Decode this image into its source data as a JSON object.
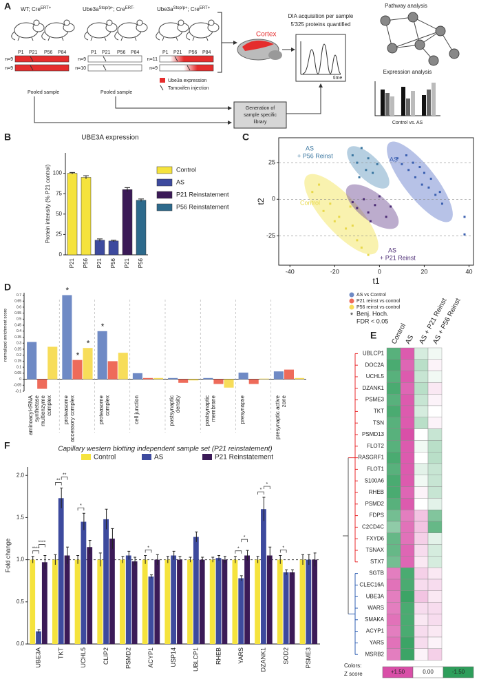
{
  "panel_labels": [
    "A",
    "B",
    "C",
    "D",
    "E",
    "F"
  ],
  "diagram": {
    "groups": [
      {
        "label": [
          [
            "WT; Cre",
            "ERT+"
          ]
        ],
        "n": [
          "n=9",
          "n=9"
        ],
        "pooled": "Pooled sample"
      },
      {
        "label": [
          [
            "Ube3a",
            "Stop/p+"
          ],
          [
            "; Cre",
            "ERT-"
          ]
        ],
        "n": [
          "n=9",
          "n=10"
        ],
        "pooled": "Pooled sample"
      },
      {
        "label": [
          [
            "Ube3a",
            "Stop/p+"
          ],
          [
            "; Cre",
            "ERT+"
          ]
        ],
        "n": [
          "n=11",
          "n=9"
        ]
      }
    ],
    "timepoints": [
      "P1",
      "P21",
      "P56",
      "P84"
    ],
    "legend": [
      "Ube3a expression",
      "Tamoxifen injection"
    ],
    "cortex": "Cortex",
    "acquisition": [
      "DIA acquisition per sample",
      "5'325 proteins quantified"
    ],
    "time_axis": "time",
    "pathway": "Pathway analysis",
    "expression": "Expression analysis",
    "comparison": "Control vs. AS",
    "library": [
      "Generation of",
      "sample specific",
      "library"
    ]
  },
  "chart_data": [
    {
      "type": "bar",
      "title": "UBE3A expression",
      "y_label": "Protein intensity (% P21 control)",
      "categories": [
        "P21",
        "P56",
        "P21",
        "P56",
        "P21",
        "P56"
      ],
      "series": [
        {
          "name": "Control",
          "color": "#f5e33d",
          "values": [
            100,
            95,
            null,
            null,
            null,
            null
          ],
          "errors": [
            1,
            2,
            null,
            null,
            null,
            null
          ]
        },
        {
          "name": "AS",
          "color": "#3d4a9e",
          "values": [
            null,
            null,
            18,
            17,
            null,
            null
          ],
          "errors": [
            null,
            null,
            1.5,
            1,
            null,
            null
          ]
        },
        {
          "name": "P21 Reinstatement",
          "color": "#3b1a57",
          "values": [
            null,
            null,
            null,
            null,
            80,
            null
          ],
          "errors": [
            null,
            null,
            null,
            null,
            2.5,
            null
          ]
        },
        {
          "name": "P56 Reinstatement",
          "color": "#2d6a8c",
          "values": [
            null,
            null,
            null,
            null,
            null,
            67
          ],
          "errors": [
            null,
            null,
            null,
            null,
            null,
            1.5
          ]
        }
      ],
      "ylim": [
        0,
        125
      ],
      "yticks": [
        0,
        25,
        50,
        75,
        100
      ]
    },
    {
      "type": "scatter",
      "x_label": "t1",
      "y_label": "t2",
      "series": [
        {
          "label": [
            "Control"
          ],
          "color": "#e8d84a",
          "x": [
            -30,
            -27,
            -25,
            -22,
            -20,
            -18,
            -15,
            -13,
            -10,
            -8,
            -5,
            -12
          ],
          "y": [
            5,
            10,
            -8,
            -3,
            -15,
            -12,
            -20,
            -5,
            -28,
            -33,
            -38,
            -18
          ]
        },
        {
          "label": [
            "AS"
          ],
          "color": "#3a5fb0",
          "x": [
            8,
            10,
            12,
            13,
            15,
            16,
            18,
            19,
            20,
            22,
            23,
            25,
            27,
            28,
            38,
            38
          ],
          "y": [
            28,
            24,
            30,
            20,
            25,
            15,
            22,
            10,
            18,
            8,
            14,
            3,
            5,
            -3,
            -12,
            -24
          ]
        },
        {
          "label": [
            "AS",
            "+ P56 Reinst"
          ],
          "color": "#3a76a0",
          "x": [
            -12,
            -10,
            -8,
            -6,
            -5,
            -3,
            -1,
            -9
          ],
          "y": [
            30,
            25,
            35,
            20,
            28,
            18,
            24,
            15
          ]
        },
        {
          "label": [
            "AS",
            "+ P21 Reinst"
          ],
          "color": "#4b2b74",
          "x": [
            -12,
            -10,
            -7,
            -5,
            -2,
            0,
            3,
            5,
            -4
          ],
          "y": [
            -2,
            -6,
            0,
            -9,
            -4,
            2,
            -12,
            -5,
            -15
          ]
        }
      ],
      "xlim": [
        -45,
        42
      ],
      "ylim": [
        -45,
        42
      ],
      "xticks": [
        -40,
        -20,
        0,
        20,
        40
      ],
      "yticks": [
        -25,
        0,
        25
      ]
    },
    {
      "type": "bar",
      "y_label": "normalized enrichment score",
      "categories": [
        [
          "aminoacyl-tRNA",
          "synthetase",
          "multienzyme",
          "complex"
        ],
        [
          "proteasome",
          "accessory complex"
        ],
        [
          "proteasome",
          "complex"
        ],
        [
          "cell junction"
        ],
        [
          "postsynaptic",
          "density"
        ],
        [
          "postsynaptic",
          "membrane"
        ],
        [
          "presynapse"
        ],
        [
          "presynaptic active",
          "zone"
        ]
      ],
      "series": [
        {
          "name": "AS vs Control",
          "color": "#6f8ac5",
          "values": [
            0.31,
            0.7,
            0.4,
            0.05,
            0.01,
            0.01,
            0.055,
            0.065
          ]
        },
        {
          "name": "P21 reinst vs control",
          "color": "#ee6b5a",
          "values": [
            -0.08,
            0.16,
            0.15,
            0.01,
            -0.03,
            -0.04,
            -0.04,
            0.08
          ]
        },
        {
          "name": "P56 reinst vs control",
          "color": "#f7dd5a",
          "values": [
            0.27,
            0.26,
            0.22,
            0.01,
            -0.01,
            -0.07,
            0.005,
            0.01
          ]
        }
      ],
      "annotations": [
        {
          "text": "*",
          "series": 0,
          "category": 1
        },
        {
          "text": "*",
          "series": 1,
          "category": 1
        },
        {
          "text": "*",
          "series": 2,
          "category": 1
        },
        {
          "text": "*",
          "series": 0,
          "category": 2
        }
      ],
      "note": {
        "symbol": "*",
        "lines": [
          "Benj. Hoch.",
          "FDR < 0.05"
        ]
      },
      "ylim": [
        -0.1,
        0.72
      ],
      "yticks": [
        -0.1,
        -0.05,
        0,
        0.05,
        0.1,
        0.15,
        0.2,
        0.25,
        0.3,
        0.35,
        0.4,
        0.45,
        0.5,
        0.55,
        0.6,
        0.65,
        0.7
      ]
    },
    {
      "type": "heatmap",
      "columns": [
        "Control",
        "AS",
        "AS + P21 Reinst",
        "AS + P56 Reinst"
      ],
      "rows": [
        "UBLCP1",
        "DOC2A",
        "UCHL5",
        "DZANK1",
        "PSME3",
        "TKT",
        "TSN",
        "PSMD13",
        "FLOT2",
        "RASGRF1",
        "FLOT1",
        "S100A6",
        "RHEB",
        "PSMD2",
        "FDPS",
        "C2CD4C",
        "FXYD6",
        "TSNAX",
        "STX7",
        "SGTB",
        "CLEC16A",
        "UBE3A",
        "WARS",
        "SMAKA",
        "ACYP1",
        "YARS",
        "MSRB2"
      ],
      "values": [
        [
          -1.2,
          1.4,
          -0.3,
          -0.1
        ],
        [
          -1.3,
          1.3,
          -0.5,
          0.1
        ],
        [
          -1.2,
          1.4,
          -0.4,
          -0.1
        ],
        [
          -1.3,
          1.3,
          -0.5,
          0.2
        ],
        [
          -1.2,
          1.4,
          -0.4,
          0.1
        ],
        [
          -1.3,
          1.4,
          -0.3,
          0
        ],
        [
          -1.2,
          1.4,
          -0.5,
          0.1
        ],
        [
          -1.2,
          1.5,
          0,
          -0.4
        ],
        [
          -1.2,
          1.4,
          -0.1,
          -0.5
        ],
        [
          -1.3,
          1.4,
          0,
          -0.5
        ],
        [
          -1.2,
          1.4,
          -0.2,
          -0.4
        ],
        [
          -1.3,
          1.4,
          -0.1,
          -0.4
        ],
        [
          -1.3,
          1.3,
          0.1,
          -0.4
        ],
        [
          -1.2,
          1.4,
          0,
          -0.2
        ],
        [
          -1,
          1.1,
          0.5,
          -0.9
        ],
        [
          -0.8,
          1.2,
          0.5,
          -1.1
        ],
        [
          -1.1,
          1.2,
          0.4,
          -0.2
        ],
        [
          -1.1,
          1.3,
          0.3,
          -0.3
        ],
        [
          -1,
          1.3,
          0.2,
          -0.3
        ],
        [
          1.1,
          -1.3,
          0.4,
          0.2
        ],
        [
          1.2,
          -1.3,
          0.3,
          0.3
        ],
        [
          1.1,
          -1.4,
          0.5,
          0.2
        ],
        [
          1.1,
          -1.3,
          0.3,
          0.3
        ],
        [
          1.2,
          -1.3,
          0.2,
          0.3
        ],
        [
          1.1,
          -1.3,
          0.3,
          0.2
        ],
        [
          1.2,
          -1.4,
          0.3,
          0.1
        ],
        [
          1.1,
          -1.4,
          0.1,
          0.4
        ]
      ],
      "clusters": [
        {
          "color": "#e8282b",
          "size": 19
        },
        {
          "color": "#2f5fb3",
          "size": 8
        }
      ],
      "legend_title": [
        "Colors:",
        "Z score"
      ],
      "high_color": "#d94fa8",
      "low_color": "#2e9e5b",
      "zlim": [
        -1.5,
        1.5
      ],
      "zticks": [
        {
          "value": 1.5,
          "label": "+1.50"
        },
        {
          "value": 0,
          "label": "0.00"
        },
        {
          "value": -1.5,
          "label": "-1.50"
        }
      ]
    },
    {
      "type": "bar",
      "title": "Capillary western blotting independent sample set (P21 reinstatement)",
      "y_label": "Fold change",
      "categories": [
        "UBE3A",
        "TKT",
        "UCHL5",
        "CLIP2",
        "PSMD2",
        "ACYP1",
        "USP14",
        "UBLCP1",
        "RHEB",
        "YARS",
        "DZANK1",
        "SOD2",
        "PSME3"
      ],
      "series": [
        {
          "name": "Control",
          "color": "#f5e33d",
          "values": [
            1,
            1,
            1,
            1,
            1,
            1,
            1,
            1,
            1,
            1,
            1,
            1,
            1
          ],
          "errors": [
            0.04,
            0.06,
            0.05,
            0.08,
            0.04,
            0.05,
            0.04,
            0.03,
            0.03,
            0.04,
            0.04,
            0.05,
            0.06
          ]
        },
        {
          "name": "AS",
          "color": "#3d4a9e",
          "values": [
            0.15,
            1.73,
            1.45,
            1.48,
            1.05,
            0.8,
            1.05,
            1.27,
            1.02,
            0.78,
            1.6,
            0.85,
            1
          ],
          "errors": [
            0.02,
            0.12,
            0.1,
            0.12,
            0.05,
            0.02,
            0.05,
            0.06,
            0.03,
            0.03,
            0.14,
            0.03,
            0.06
          ]
        },
        {
          "name": "P21 Reinstatement",
          "color": "#3b1a57",
          "values": [
            0.97,
            1.05,
            1.15,
            1.25,
            0.98,
            1,
            1,
            1,
            1,
            1.05,
            1.05,
            0.85,
            1
          ],
          "errors": [
            0.08,
            0.1,
            0.08,
            0.12,
            0.05,
            0.06,
            0.04,
            0.03,
            0.04,
            0.06,
            0.1,
            0.03,
            0.08
          ]
        }
      ],
      "annotations": [
        {
          "text": "****",
          "category": 0,
          "from": 0,
          "to": 1
        },
        {
          "text": "****",
          "category": 0,
          "from": 1,
          "to": 2
        },
        {
          "text": "**",
          "category": 1,
          "from": 0,
          "to": 1
        },
        {
          "text": "**",
          "category": 1,
          "from": 1,
          "to": 2
        },
        {
          "text": "*",
          "category": 2,
          "from": 0,
          "to": 1
        },
        {
          "text": "*",
          "category": 5,
          "from": 0,
          "to": 1
        },
        {
          "text": "*",
          "category": 9,
          "from": 0,
          "to": 1
        },
        {
          "text": "*",
          "category": 9,
          "from": 1,
          "to": 2
        },
        {
          "text": "*",
          "category": 10,
          "from": 0,
          "to": 1
        },
        {
          "text": "*",
          "category": 10,
          "from": 1,
          "to": 2
        },
        {
          "text": "*",
          "category": 11,
          "from": 0,
          "to": 1
        }
      ],
      "reference_line": 1,
      "ylim": [
        0,
        2.1
      ],
      "yticks": [
        {
          "value": 0,
          "label": "0.0"
        },
        {
          "value": 0.5,
          "label": "0.5"
        },
        {
          "value": 1,
          "label": "1.0"
        },
        {
          "value": 1.5,
          "label": "1.5"
        },
        {
          "value": 2,
          "label": "2.0"
        }
      ]
    }
  ]
}
